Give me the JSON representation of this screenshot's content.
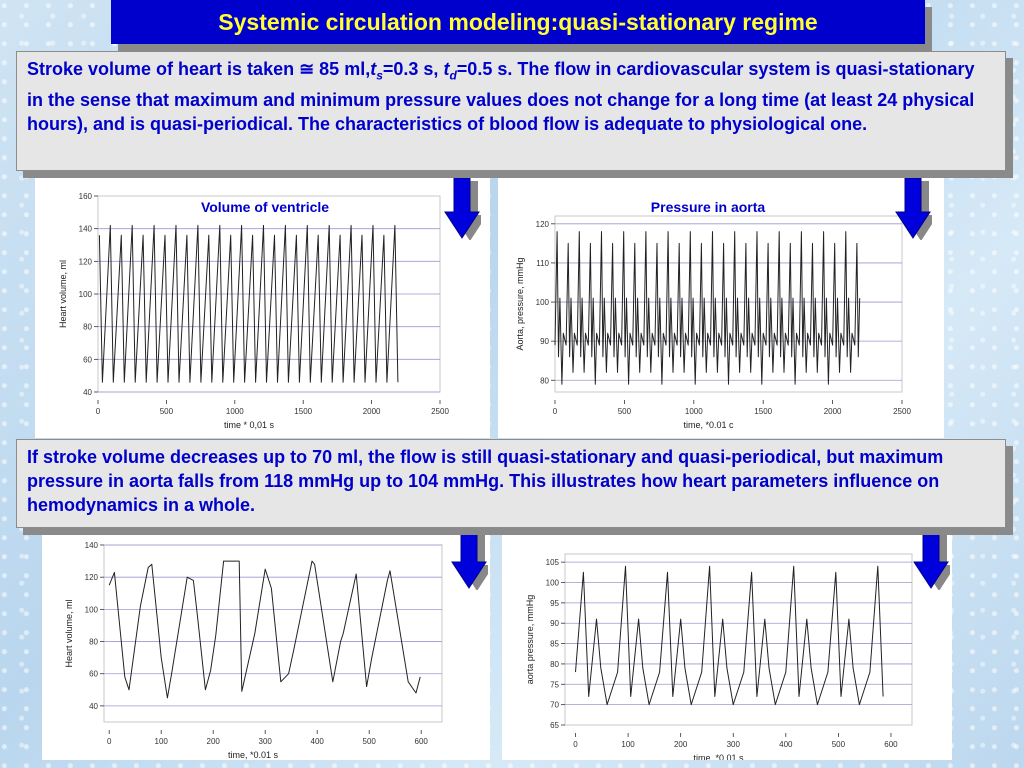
{
  "slide_title": "Systemic circulation modeling:quasi-stationary regime",
  "note1": {
    "part1": "Stroke volume of heart is taken ≅ 85 ml,",
    "ts_var": "t",
    "ts_sub": "s",
    "ts_val": "=0.3 s, ",
    "td_var": "t",
    "td_sub": "d",
    "td_val": "=0.5 s. The flow in cardiovascular system is quasi-stationary in the sense that maximum and minimum  pressure values does not change for a long time (at least 24 physical hours), and is quasi-periodical. The characteristics of blood flow is adequate to physiological one."
  },
  "note2": {
    "text": "If stroke volume decreases up to 70 ml, the flow is still quasi-stationary and quasi-periodical, but  maximum pressure in aorta falls from 118 mmHg up to 104 mmHg. This illustrates how heart parameters influence on hemodynamics in a whole."
  },
  "arrow_color": "#0000dd",
  "chart_data": [
    {
      "type": "line",
      "title": "Volume of ventricle",
      "xlabel": "time   * 0,01 s",
      "ylabel": "Heart volume, ml",
      "xlim": [
        0,
        2500
      ],
      "ylim": [
        40,
        160
      ],
      "xticks": [
        0,
        500,
        1000,
        1500,
        2000,
        2500
      ],
      "yticks": [
        40,
        60,
        80,
        100,
        120,
        140,
        160
      ],
      "hgrid": [
        40,
        60,
        80,
        100,
        120,
        140
      ],
      "grid": true,
      "series": [
        {
          "period": 80,
          "min": 46,
          "max": 142,
          "x_start": 10,
          "x_end": 2205,
          "shape": "sawtooth",
          "x": [
            10,
            30,
            65,
            90,
            110,
            145,
            170,
            190,
            225,
            250,
            270,
            305,
            330
          ],
          "y": [
            136,
            46,
            140,
            46,
            136,
            46,
            140,
            46,
            136,
            46,
            140,
            46,
            136
          ]
        }
      ]
    },
    {
      "type": "line",
      "title": "Pressure in aorta",
      "xlabel": "time,     *0.01 c",
      "ylabel": "Aorta, pressure,  mmHg",
      "xlim": [
        0,
        2500
      ],
      "ylim": [
        77,
        122
      ],
      "xticks": [
        0,
        500,
        1000,
        1500,
        2000,
        2500
      ],
      "yticks": [
        80,
        90,
        100,
        110,
        120
      ],
      "hgrid": [
        80,
        90,
        100,
        110,
        120
      ],
      "grid": true,
      "series": [
        {
          "period": 80,
          "min": 79,
          "max": 118,
          "x_start": 0,
          "x_end": 2200,
          "shape": "pulse",
          "x": [
            0,
            15,
            25,
            35,
            50,
            60,
            80
          ],
          "y": [
            89,
            116,
            86,
            101,
            82,
            92,
            89
          ]
        }
      ]
    },
    {
      "type": "line",
      "title": "",
      "xlabel": "time,     *0.01 s",
      "ylabel": "Heart volume, ml",
      "xlim": [
        -10,
        640
      ],
      "ylim": [
        30,
        140
      ],
      "xticks": [
        0,
        100,
        200,
        300,
        400,
        500,
        600
      ],
      "yticks": [
        40,
        60,
        80,
        100,
        120,
        140
      ],
      "hgrid": [
        40,
        60,
        80,
        100,
        120,
        140
      ],
      "grid": true,
      "series": [
        {
          "shape": "recorded",
          "x": [
            0,
            10,
            30,
            38,
            60,
            75,
            82,
            100,
            112,
            120,
            150,
            162,
            170,
            185,
            195,
            205,
            220,
            250,
            255,
            280,
            300,
            312,
            330,
            345,
            355,
            390,
            395,
            430,
            445,
            450,
            475,
            495,
            505,
            535,
            540,
            575,
            590,
            598
          ],
          "y": [
            115,
            123,
            58,
            50,
            102,
            126,
            128,
            70,
            45,
            60,
            120,
            118,
            95,
            50,
            62,
            84,
            130,
            130,
            49,
            85,
            125,
            113,
            55,
            60,
            75,
            130,
            128,
            55,
            80,
            85,
            122,
            52,
            70,
            118,
            124,
            55,
            48,
            58
          ]
        }
      ]
    },
    {
      "type": "line",
      "title": "",
      "xlabel": "time,   *0.01 s",
      "ylabel": "aorta pressure,  mmHg",
      "xlim": [
        -20,
        640
      ],
      "ylim": [
        65,
        107
      ],
      "xticks": [
        0,
        100,
        200,
        300,
        400,
        500,
        600
      ],
      "yticks": [
        65,
        70,
        75,
        80,
        85,
        90,
        95,
        100,
        105
      ],
      "hgrid": [
        70,
        75,
        80,
        85,
        90,
        95,
        100,
        105
      ],
      "grid": true,
      "series": [
        {
          "shape": "recorded-pulse",
          "period": 80,
          "min": 69,
          "max": 104,
          "x_start": 0,
          "x_end": 590,
          "x": [
            0,
            15,
            25,
            40,
            48,
            60,
            80
          ],
          "y": [
            78,
            104,
            72,
            91,
            79,
            70,
            78
          ]
        }
      ]
    }
  ]
}
